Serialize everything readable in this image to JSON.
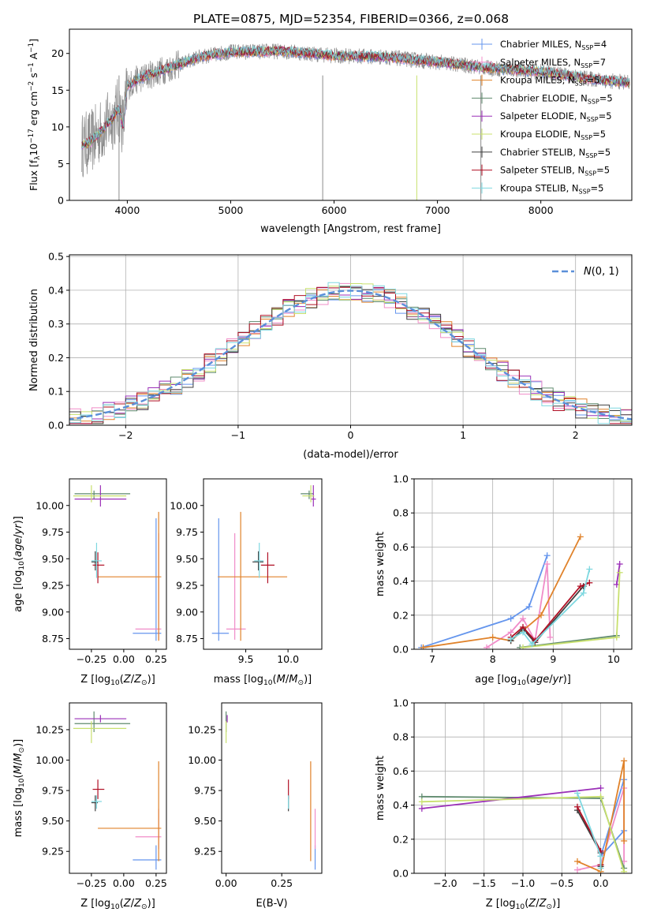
{
  "figure": {
    "title": "PLATE=0875, MJD=52354, FIBERID=0366, z=0.068"
  },
  "colors": {
    "chabrier_miles": "#6495ed",
    "salpeter_miles": "#f08cc8",
    "kroupa_miles": "#e0822a",
    "chabrier_elodie": "#5f8a6e",
    "salpeter_elodie": "#9b30b8",
    "kroupa_elodie": "#c8e06e",
    "chabrier_stelib": "#404040",
    "salpeter_stelib": "#b01025",
    "kroupa_stelib": "#7fd8e0",
    "data_gray": "#8c8c8c",
    "normal_curve": "#5b8fd9"
  },
  "legend_entries": [
    {
      "key": "chabrier_miles",
      "label": "Chabrier MILES, N",
      "sub": "SSP",
      "tail": "=4"
    },
    {
      "key": "salpeter_miles",
      "label": "Salpeter MILES, N",
      "sub": "SSP",
      "tail": "=7"
    },
    {
      "key": "kroupa_miles",
      "label": "Kroupa MILES, N",
      "sub": "SSP",
      "tail": "=5"
    },
    {
      "key": "chabrier_elodie",
      "label": "Chabrier ELODIE, N",
      "sub": "SSP",
      "tail": "=5"
    },
    {
      "key": "salpeter_elodie",
      "label": "Salpeter ELODIE, N",
      "sub": "SSP",
      "tail": "=5"
    },
    {
      "key": "kroupa_elodie",
      "label": "Kroupa ELODIE, N",
      "sub": "SSP",
      "tail": "=5"
    },
    {
      "key": "chabrier_stelib",
      "label": "Chabrier STELIB, N",
      "sub": "SSP",
      "tail": "=5"
    },
    {
      "key": "salpeter_stelib",
      "label": "Salpeter STELIB, N",
      "sub": "SSP",
      "tail": "=5"
    },
    {
      "key": "kroupa_stelib",
      "label": "Kroupa STELIB, N",
      "sub": "SSP",
      "tail": "=5"
    }
  ],
  "chart_data": [
    {
      "id": "spectrum",
      "type": "line",
      "xlabel": "wavelength [Angstrom, rest frame]",
      "ylabel": "Flux [f_λ 10^-17 erg cm^-2 s^-1 A^-1]",
      "xlim": [
        3440,
        8880
      ],
      "ylim": [
        0,
        23.3
      ],
      "xticks": [
        4000,
        5000,
        6000,
        7000,
        8000
      ],
      "yticks": [
        0,
        5,
        10,
        15,
        20
      ],
      "envelope": {
        "x": [
          3560,
          3650,
          3750,
          3850,
          3920,
          3960,
          4000,
          4100,
          4200,
          4300,
          4400,
          4500,
          4700,
          5000,
          5500,
          6000,
          6500,
          7000,
          7500,
          8000,
          8500,
          8860
        ],
        "y": [
          7.5,
          8.0,
          9.5,
          11.0,
          12.5,
          10.0,
          15.5,
          16.5,
          17.0,
          17.5,
          18.0,
          18.5,
          19.5,
          20.2,
          20.3,
          19.7,
          19.5,
          18.8,
          18.0,
          17.5,
          16.5,
          16.0
        ]
      },
      "gaps": [
        3920,
        5890,
        6800,
        7420
      ],
      "grid": false
    },
    {
      "id": "residuals",
      "type": "histogram",
      "xlabel": "(data-model)/error",
      "ylabel": "Normed distribution",
      "xlim": [
        -2.5,
        2.5
      ],
      "ylim": [
        0,
        0.505
      ],
      "xticks": [
        -2,
        -1,
        0,
        1,
        2
      ],
      "yticks": [
        0,
        0.1,
        0.2,
        0.3,
        0.4,
        0.5
      ],
      "legend": "N(0,1)",
      "grid": true,
      "bin_width": 0.1
    },
    {
      "id": "age_vs_Z",
      "type": "errorbar",
      "xlabel": "Z [log10(Z/Z⊙)]",
      "ylabel": "age [log10(age/yr)]",
      "xlim": [
        -0.42,
        0.33
      ],
      "ylim": [
        8.65,
        10.25
      ],
      "xticks": [
        -0.25,
        0.0,
        0.25
      ],
      "yticks": [
        8.75,
        9.0,
        9.25,
        9.5,
        9.75,
        10.0
      ],
      "points": [
        {
          "key": "chabrier_miles",
          "x": 0.25,
          "y": 8.8,
          "xerr": [
            0.18,
            0.04
          ],
          "yerr": [
            0.07,
            1.08
          ]
        },
        {
          "key": "salpeter_miles",
          "x": 0.27,
          "y": 8.84,
          "xerr": [
            0.18,
            0.02
          ],
          "yerr": [
            0.1,
            0.9
          ]
        },
        {
          "key": "kroupa_miles",
          "x": 0.27,
          "y": 9.33,
          "xerr": [
            0.47,
            0.02
          ],
          "yerr": [
            0.6,
            0.61
          ]
        },
        {
          "key": "chabrier_elodie",
          "x": -0.23,
          "y": 10.11,
          "xerr": [
            0.15,
            0.28
          ],
          "yerr": [
            0.05,
            0.03
          ]
        },
        {
          "key": "salpeter_elodie",
          "x": -0.18,
          "y": 10.06,
          "xerr": [
            0.2,
            0.2
          ],
          "yerr": [
            0.07,
            0.13
          ]
        },
        {
          "key": "kroupa_elodie",
          "x": -0.25,
          "y": 10.09,
          "xerr": [
            0.14,
            0.27
          ],
          "yerr": [
            0.06,
            0.1
          ]
        },
        {
          "key": "chabrier_stelib",
          "x": -0.22,
          "y": 9.47,
          "xerr": [
            0.03,
            0.02
          ],
          "yerr": [
            0.08,
            0.1
          ]
        },
        {
          "key": "salpeter_stelib",
          "x": -0.2,
          "y": 9.44,
          "xerr": [
            0.04,
            0.05
          ],
          "yerr": [
            0.17,
            0.12
          ]
        },
        {
          "key": "kroupa_stelib",
          "x": -0.21,
          "y": 9.48,
          "xerr": [
            0.04,
            0.04
          ],
          "yerr": [
            0.16,
            0.17
          ]
        }
      ]
    },
    {
      "id": "age_vs_mass",
      "type": "errorbar",
      "xlabel": "mass [log10(M/M⊙)]",
      "ylabel": "",
      "xlim": [
        9.0,
        10.4
      ],
      "ylim": [
        8.65,
        10.25
      ],
      "xticks": [
        9.5,
        10.0
      ],
      "yticks": [
        8.75,
        9.0,
        9.25,
        9.5,
        9.75,
        10.0
      ],
      "points": [
        {
          "key": "chabrier_miles",
          "x": 9.18,
          "y": 8.8,
          "xerr": [
            0.08,
            0.12
          ],
          "yerr": [
            0.07,
            1.08
          ]
        },
        {
          "key": "salpeter_miles",
          "x": 9.37,
          "y": 8.84,
          "xerr": [
            0.1,
            0.13
          ],
          "yerr": [
            0.1,
            0.9
          ]
        },
        {
          "key": "kroupa_miles",
          "x": 9.44,
          "y": 9.33,
          "xerr": [
            0.27,
            0.55
          ],
          "yerr": [
            0.6,
            0.61
          ]
        },
        {
          "key": "chabrier_elodie",
          "x": 10.25,
          "y": 10.11,
          "xerr": [
            0.1,
            0.05
          ],
          "yerr": [
            0.05,
            0.03
          ]
        },
        {
          "key": "salpeter_elodie",
          "x": 10.3,
          "y": 10.06,
          "xerr": [
            0.03,
            0.03
          ],
          "yerr": [
            0.07,
            0.13
          ]
        },
        {
          "key": "kroupa_elodie",
          "x": 10.27,
          "y": 10.09,
          "xerr": [
            0.1,
            0.04
          ],
          "yerr": [
            0.06,
            0.1
          ]
        },
        {
          "key": "chabrier_stelib",
          "x": 9.65,
          "y": 9.47,
          "xerr": [
            0.07,
            0.06
          ],
          "yerr": [
            0.08,
            0.1
          ]
        },
        {
          "key": "salpeter_stelib",
          "x": 9.76,
          "y": 9.44,
          "xerr": [
            0.08,
            0.08
          ],
          "yerr": [
            0.17,
            0.12
          ]
        },
        {
          "key": "kroupa_stelib",
          "x": 9.66,
          "y": 9.48,
          "xerr": [
            0.06,
            0.05
          ],
          "yerr": [
            0.16,
            0.17
          ]
        }
      ]
    },
    {
      "id": "weight_vs_age",
      "type": "line",
      "xlabel": "age [log10(age/yr)]",
      "ylabel": "mass weight",
      "xlim": [
        6.7,
        10.3
      ],
      "ylim": [
        0,
        1.0
      ],
      "xticks": [
        7,
        8,
        9,
        10
      ],
      "yticks": [
        0,
        0.2,
        0.4,
        0.6,
        0.8,
        1.0
      ],
      "grid": true,
      "series": [
        {
          "key": "chabrier_miles",
          "x": [
            6.82,
            8.3,
            8.6,
            8.9
          ],
          "y": [
            0.01,
            0.18,
            0.25,
            0.55
          ]
        },
        {
          "key": "salpeter_miles",
          "x": [
            7.9,
            8.3,
            8.5,
            8.7,
            8.9,
            8.95
          ],
          "y": [
            0.01,
            0.1,
            0.18,
            0.05,
            0.5,
            0.07
          ]
        },
        {
          "key": "kroupa_miles",
          "x": [
            6.85,
            8.0,
            8.3,
            8.8,
            9.45
          ],
          "y": [
            0.01,
            0.07,
            0.05,
            0.2,
            0.66
          ]
        },
        {
          "key": "chabrier_elodie",
          "x": [
            8.45,
            10.05
          ],
          "y": [
            0.01,
            0.08
          ]
        },
        {
          "key": "salpeter_elodie",
          "x": [
            10.05,
            10.1
          ],
          "y": [
            0.38,
            0.5
          ]
        },
        {
          "key": "kroupa_elodie",
          "x": [
            8.5,
            10.05,
            10.1
          ],
          "y": [
            0.01,
            0.07,
            0.45
          ]
        },
        {
          "key": "chabrier_stelib",
          "x": [
            8.3,
            8.5,
            8.7,
            9.5
          ],
          "y": [
            0.05,
            0.12,
            0.04,
            0.37
          ]
        },
        {
          "key": "salpeter_stelib",
          "x": [
            8.3,
            8.5,
            8.7,
            9.45,
            9.6
          ],
          "y": [
            0.07,
            0.13,
            0.05,
            0.37,
            0.39
          ]
        },
        {
          "key": "kroupa_stelib",
          "x": [
            8.3,
            8.5,
            8.65,
            9.5,
            9.6
          ],
          "y": [
            0.06,
            0.1,
            0.03,
            0.33,
            0.47
          ]
        }
      ]
    },
    {
      "id": "mass_vs_Z",
      "type": "errorbar",
      "xlabel": "Z [log10(Z/Z⊙)]",
      "ylabel": "mass [log10(M/M⊙)]",
      "xlim": [
        -0.42,
        0.33
      ],
      "ylim": [
        9.07,
        10.47
      ],
      "xticks": [
        -0.25,
        0.0,
        0.25
      ],
      "yticks": [
        9.25,
        9.5,
        9.75,
        10.0,
        10.25
      ],
      "points": [
        {
          "key": "chabrier_miles",
          "x": 0.25,
          "y": 9.18,
          "xerr": [
            0.18,
            0.04
          ],
          "yerr": [
            0.08,
            0.12
          ]
        },
        {
          "key": "salpeter_miles",
          "x": 0.27,
          "y": 9.37,
          "xerr": [
            0.18,
            0.02
          ],
          "yerr": [
            0.1,
            0.23
          ]
        },
        {
          "key": "kroupa_miles",
          "x": 0.27,
          "y": 9.44,
          "xerr": [
            0.47,
            0.02
          ],
          "yerr": [
            0.27,
            0.55
          ]
        },
        {
          "key": "chabrier_elodie",
          "x": -0.23,
          "y": 10.3,
          "xerr": [
            0.15,
            0.28
          ],
          "yerr": [
            0.07,
            0.1
          ]
        },
        {
          "key": "salpeter_elodie",
          "x": -0.18,
          "y": 10.34,
          "xerr": [
            0.2,
            0.2
          ],
          "yerr": [
            0.03,
            0.03
          ]
        },
        {
          "key": "kroupa_elodie",
          "x": -0.25,
          "y": 10.26,
          "xerr": [
            0.14,
            0.27
          ],
          "yerr": [
            0.12,
            0.06
          ]
        },
        {
          "key": "chabrier_stelib",
          "x": -0.22,
          "y": 9.65,
          "xerr": [
            0.03,
            0.02
          ],
          "yerr": [
            0.07,
            0.06
          ]
        },
        {
          "key": "salpeter_stelib",
          "x": -0.2,
          "y": 9.76,
          "xerr": [
            0.04,
            0.05
          ],
          "yerr": [
            0.08,
            0.08
          ]
        },
        {
          "key": "kroupa_stelib",
          "x": -0.21,
          "y": 9.66,
          "xerr": [
            0.04,
            0.04
          ],
          "yerr": [
            0.06,
            0.05
          ]
        }
      ]
    },
    {
      "id": "mass_vs_ebv",
      "type": "errorbar",
      "xlabel": "E(B-V)",
      "ylabel": "",
      "xlim": [
        -0.02,
        0.43
      ],
      "ylim": [
        9.07,
        10.47
      ],
      "xticks": [
        0.0,
        0.25
      ],
      "yticks": [
        9.25,
        9.5,
        9.75,
        10.0,
        10.25
      ],
      "points": [
        {
          "key": "chabrier_miles",
          "x": 0.4,
          "y": 9.18,
          "xerr": [
            0,
            0
          ],
          "yerr": [
            0.08,
            0.12
          ]
        },
        {
          "key": "salpeter_miles",
          "x": 0.4,
          "y": 9.37,
          "xerr": [
            0,
            0
          ],
          "yerr": [
            0.1,
            0.23
          ]
        },
        {
          "key": "kroupa_miles",
          "x": 0.38,
          "y": 9.44,
          "xerr": [
            0,
            0
          ],
          "yerr": [
            0.27,
            0.55
          ]
        },
        {
          "key": "chabrier_elodie",
          "x": 0.0,
          "y": 10.3,
          "xerr": [
            0,
            0
          ],
          "yerr": [
            0.07,
            0.1
          ]
        },
        {
          "key": "salpeter_elodie",
          "x": 0.005,
          "y": 10.34,
          "xerr": [
            0,
            0
          ],
          "yerr": [
            0.03,
            0.03
          ]
        },
        {
          "key": "kroupa_elodie",
          "x": 0.0,
          "y": 10.26,
          "xerr": [
            0,
            0
          ],
          "yerr": [
            0.12,
            0.06
          ]
        },
        {
          "key": "chabrier_stelib",
          "x": 0.28,
          "y": 9.65,
          "xerr": [
            0,
            0
          ],
          "yerr": [
            0.07,
            0.06
          ]
        },
        {
          "key": "salpeter_stelib",
          "x": 0.28,
          "y": 9.76,
          "xerr": [
            0,
            0
          ],
          "yerr": [
            0.08,
            0.08
          ]
        },
        {
          "key": "kroupa_stelib",
          "x": 0.28,
          "y": 9.66,
          "xerr": [
            0,
            0
          ],
          "yerr": [
            0.06,
            0.05
          ]
        }
      ]
    },
    {
      "id": "weight_vs_Z",
      "type": "line",
      "xlabel": "Z [log10(Z/Z⊙)]",
      "ylabel": "mass weight",
      "xlim": [
        -2.4,
        0.4
      ],
      "ylim": [
        0,
        1.0
      ],
      "xticks": [
        -2.0,
        -1.5,
        -1.0,
        -0.5,
        0.0
      ],
      "yticks": [
        0,
        0.2,
        0.4,
        0.6,
        0.8,
        1.0
      ],
      "grid": true,
      "series": [
        {
          "key": "chabrier_miles",
          "x": [
            0.3,
            0.0,
            0.3
          ],
          "y": [
            0.55,
            0.1,
            0.25
          ]
        },
        {
          "key": "salpeter_miles",
          "x": [
            -0.3,
            0.0,
            0.3,
            0.3
          ],
          "y": [
            0.02,
            0.05,
            0.5,
            0.07
          ]
        },
        {
          "key": "kroupa_miles",
          "x": [
            -0.3,
            0.0,
            0.3,
            0.3
          ],
          "y": [
            0.07,
            0.01,
            0.66,
            0.19
          ]
        },
        {
          "key": "chabrier_elodie",
          "x": [
            -2.3,
            0.0,
            0.3
          ],
          "y": [
            0.45,
            0.44,
            0.03
          ]
        },
        {
          "key": "salpeter_elodie",
          "x": [
            -2.3,
            0.0
          ],
          "y": [
            0.38,
            0.5
          ]
        },
        {
          "key": "kroupa_elodie",
          "x": [
            -2.3,
            0.0,
            0.3
          ],
          "y": [
            0.42,
            0.45,
            0.01
          ]
        },
        {
          "key": "chabrier_stelib",
          "x": [
            -0.3,
            0.0,
            0.0
          ],
          "y": [
            0.37,
            0.12,
            0.04
          ]
        },
        {
          "key": "salpeter_stelib",
          "x": [
            -0.3,
            0.0,
            0.0
          ],
          "y": [
            0.39,
            0.13,
            0.05
          ]
        },
        {
          "key": "kroupa_stelib",
          "x": [
            -0.3,
            0.0,
            0.0
          ],
          "y": [
            0.47,
            0.1,
            0.03
          ]
        }
      ]
    }
  ]
}
